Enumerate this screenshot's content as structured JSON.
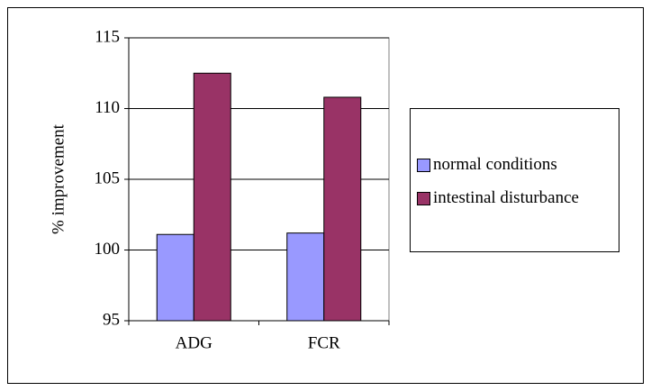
{
  "chart_data": {
    "type": "bar",
    "categories": [
      "ADG",
      "FCR"
    ],
    "series": [
      {
        "name": "normal conditions",
        "color": "#9999ff",
        "values": [
          101.1,
          101.2
        ]
      },
      {
        "name": "intestinal disturbance",
        "color": "#993366",
        "values": [
          112.5,
          110.8
        ]
      }
    ],
    "ylabel": "% improvement",
    "ylim": [
      95,
      115
    ],
    "yticks": [
      95,
      100,
      105,
      110,
      115
    ],
    "grid": true,
    "legend": "right"
  }
}
